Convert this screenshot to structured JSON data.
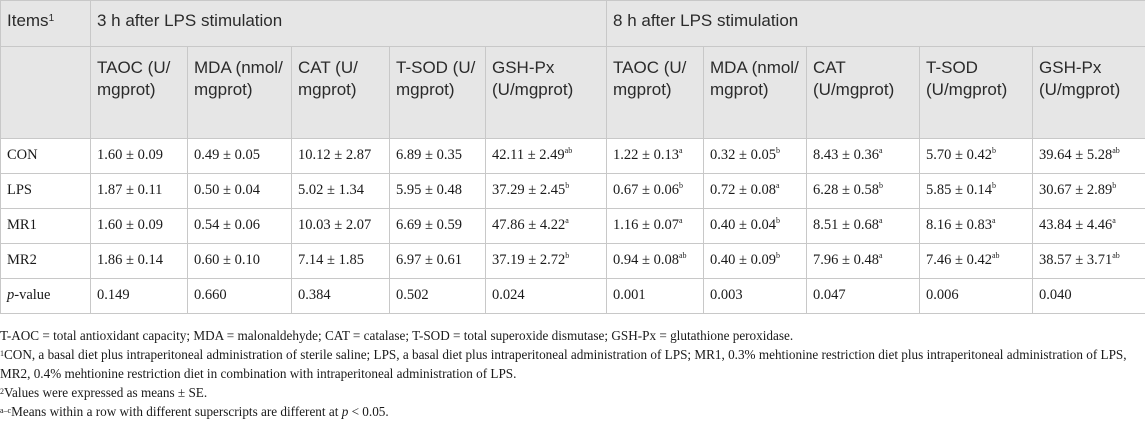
{
  "header": {
    "items_label": "Items",
    "items_sup": "1",
    "group1": "3 h after LPS stimulation",
    "group2": "8 h after LPS stimulation",
    "columns": [
      "TAOC (U/ mgprot)",
      "MDA (nmol/ mgprot)",
      "CAT (U/ mgprot)",
      "T-SOD (U/ mgprot)",
      "GSH-Px (U/mgprot)",
      "TAOC (U/ mgprot)",
      "MDA (nmol/ mgprot)",
      "CAT (U/mgprot)",
      "T-SOD (U/mgprot)",
      "GSH-Px (U/mgprot)"
    ]
  },
  "rows": [
    {
      "label": "CON",
      "cells": [
        {
          "v": "1.60 ± 0.09",
          "s": ""
        },
        {
          "v": "0.49 ± 0.05",
          "s": ""
        },
        {
          "v": "10.12 ± 2.87",
          "s": ""
        },
        {
          "v": "6.89 ± 0.35",
          "s": ""
        },
        {
          "v": "42.11 ± 2.49",
          "s": "ab"
        },
        {
          "v": "1.22 ± 0.13",
          "s": "a"
        },
        {
          "v": "0.32 ± 0.05",
          "s": "b"
        },
        {
          "v": "8.43 ± 0.36",
          "s": "a"
        },
        {
          "v": "5.70 ± 0.42",
          "s": "b"
        },
        {
          "v": "39.64 ± 5.28",
          "s": "ab"
        }
      ]
    },
    {
      "label": "LPS",
      "cells": [
        {
          "v": "1.87 ± 0.11",
          "s": ""
        },
        {
          "v": "0.50 ± 0.04",
          "s": ""
        },
        {
          "v": "5.02 ± 1.34",
          "s": ""
        },
        {
          "v": "5.95 ± 0.48",
          "s": ""
        },
        {
          "v": "37.29 ± 2.45",
          "s": "b"
        },
        {
          "v": "0.67 ± 0.06",
          "s": "b"
        },
        {
          "v": "0.72 ± 0.08",
          "s": "a"
        },
        {
          "v": "6.28 ± 0.58",
          "s": "b"
        },
        {
          "v": "5.85 ± 0.14",
          "s": "b"
        },
        {
          "v": "30.67 ± 2.89",
          "s": "b"
        }
      ]
    },
    {
      "label": "MR1",
      "cells": [
        {
          "v": "1.60 ± 0.09",
          "s": ""
        },
        {
          "v": "0.54 ± 0.06",
          "s": ""
        },
        {
          "v": "10.03 ± 2.07",
          "s": ""
        },
        {
          "v": "6.69 ± 0.59",
          "s": ""
        },
        {
          "v": "47.86 ± 4.22",
          "s": "a"
        },
        {
          "v": "1.16 ± 0.07",
          "s": "a"
        },
        {
          "v": "0.40 ± 0.04",
          "s": "b"
        },
        {
          "v": "8.51 ± 0.68",
          "s": "a"
        },
        {
          "v": "8.16 ± 0.83",
          "s": "a"
        },
        {
          "v": "43.84 ± 4.46",
          "s": "a"
        }
      ]
    },
    {
      "label": "MR2",
      "cells": [
        {
          "v": "1.86 ± 0.14",
          "s": ""
        },
        {
          "v": "0.60 ± 0.10",
          "s": ""
        },
        {
          "v": "7.14 ± 1.85",
          "s": ""
        },
        {
          "v": "6.97 ± 0.61",
          "s": ""
        },
        {
          "v": "37.19 ± 2.72",
          "s": "b"
        },
        {
          "v": "0.94 ± 0.08",
          "s": "ab"
        },
        {
          "v": "0.40 ± 0.09",
          "s": "b"
        },
        {
          "v": "7.96 ± 0.48",
          "s": "a"
        },
        {
          "v": "7.46 ± 0.42",
          "s": "ab"
        },
        {
          "v": "38.57 ± 3.71",
          "s": "ab"
        }
      ]
    }
  ],
  "pvalue_row": {
    "label_italic": "p",
    "label_rest": "-value",
    "values": [
      "0.149",
      "0.660",
      "0.384",
      "0.502",
      "0.024",
      "0.001",
      "0.003",
      "0.047",
      "0.006",
      "0.040"
    ]
  },
  "notes": {
    "abbreviations": "T-AOC = total antioxidant capacity; MDA = malonaldehyde; CAT = catalase; T-SOD = total superoxide dismutase; GSH-Px = glutathione peroxidase.",
    "n1_mark": "1",
    "n1": "CON, a basal diet plus intraperitoneal administration of sterile saline; LPS, a basal diet plus intraperitoneal administration of LPS; MR1, 0.3% mehtionine restriction diet plus intraperitoneal administration of LPS, MR2, 0.4% mehtionine restriction diet in combination with intraperitoneal administration of LPS.",
    "n2_mark": "2",
    "n2": "Values were expressed as means ± SE.",
    "n3_mark": "a–c",
    "n3_pre": "Means within a row with different superscripts are different at ",
    "n3_p": "p",
    "n3_post": " < 0.05."
  }
}
